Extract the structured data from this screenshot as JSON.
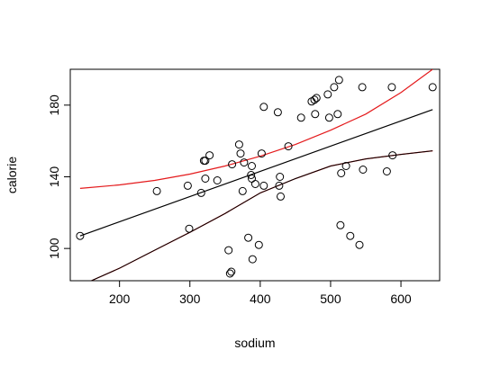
{
  "chart_data": {
    "type": "scatter",
    "xlabel": "sodium",
    "ylabel": "calorie",
    "xlim": [
      130,
      655
    ],
    "ylim": [
      82,
      200
    ],
    "xticks": [
      200,
      300,
      400,
      500,
      600
    ],
    "yticks": [
      100,
      140,
      180
    ],
    "points": [
      [
        144,
        107
      ],
      [
        253,
        132
      ],
      [
        297,
        135
      ],
      [
        299,
        111
      ],
      [
        316,
        131
      ],
      [
        320,
        149
      ],
      [
        322,
        149
      ],
      [
        322,
        139
      ],
      [
        328,
        152
      ],
      [
        339,
        138
      ],
      [
        355,
        99
      ],
      [
        357,
        86
      ],
      [
        359,
        87
      ],
      [
        360,
        147
      ],
      [
        370,
        158
      ],
      [
        372,
        153
      ],
      [
        375,
        132
      ],
      [
        377,
        148
      ],
      [
        383,
        106
      ],
      [
        387,
        141
      ],
      [
        388,
        139
      ],
      [
        388,
        146
      ],
      [
        389,
        94
      ],
      [
        393,
        136
      ],
      [
        398,
        102
      ],
      [
        402,
        153
      ],
      [
        405,
        179
      ],
      [
        405,
        135
      ],
      [
        425,
        176
      ],
      [
        427,
        135
      ],
      [
        428,
        140
      ],
      [
        429,
        129
      ],
      [
        440,
        157
      ],
      [
        458,
        173
      ],
      [
        473,
        182
      ],
      [
        478,
        175
      ],
      [
        480,
        184
      ],
      [
        477,
        183
      ],
      [
        496,
        186
      ],
      [
        498,
        173
      ],
      [
        505,
        190
      ],
      [
        510,
        175
      ],
      [
        512,
        194
      ],
      [
        514,
        113
      ],
      [
        515,
        142
      ],
      [
        522,
        146
      ],
      [
        528,
        107
      ],
      [
        541,
        102
      ],
      [
        545,
        190
      ],
      [
        546,
        144
      ],
      [
        580,
        143
      ],
      [
        587,
        190
      ],
      [
        588,
        152
      ],
      [
        645,
        190
      ]
    ],
    "series": [
      {
        "type": "line",
        "color": "#000000",
        "x": [
          144,
          645
        ],
        "y": [
          107,
          177.5
        ]
      },
      {
        "type": "line",
        "color": "#e41a1c",
        "x": [
          144,
          200,
          250,
          300,
          350,
          400,
          450,
          500,
          550,
          600,
          645
        ],
        "y": [
          133.5,
          135.5,
          138,
          141.5,
          146,
          151.5,
          158,
          166,
          175,
          187,
          200
        ]
      },
      {
        "type": "line",
        "color": "#e41a1c",
        "x": [
          160,
          200,
          250,
          300,
          350,
          400,
          450,
          500,
          550,
          600,
          645
        ],
        "y": [
          82,
          89,
          99,
          109,
          119.5,
          131,
          139,
          146,
          150,
          152.5,
          154.5
        ]
      },
      {
        "type": "line",
        "color": "#000000",
        "width": 1,
        "x": [
          160,
          200,
          250,
          300,
          350,
          400,
          450,
          500,
          550,
          600,
          645
        ],
        "y": [
          82,
          89,
          99,
          109,
          119.5,
          131,
          139,
          146,
          150,
          152.5,
          154.5
        ]
      }
    ],
    "grid": false
  }
}
